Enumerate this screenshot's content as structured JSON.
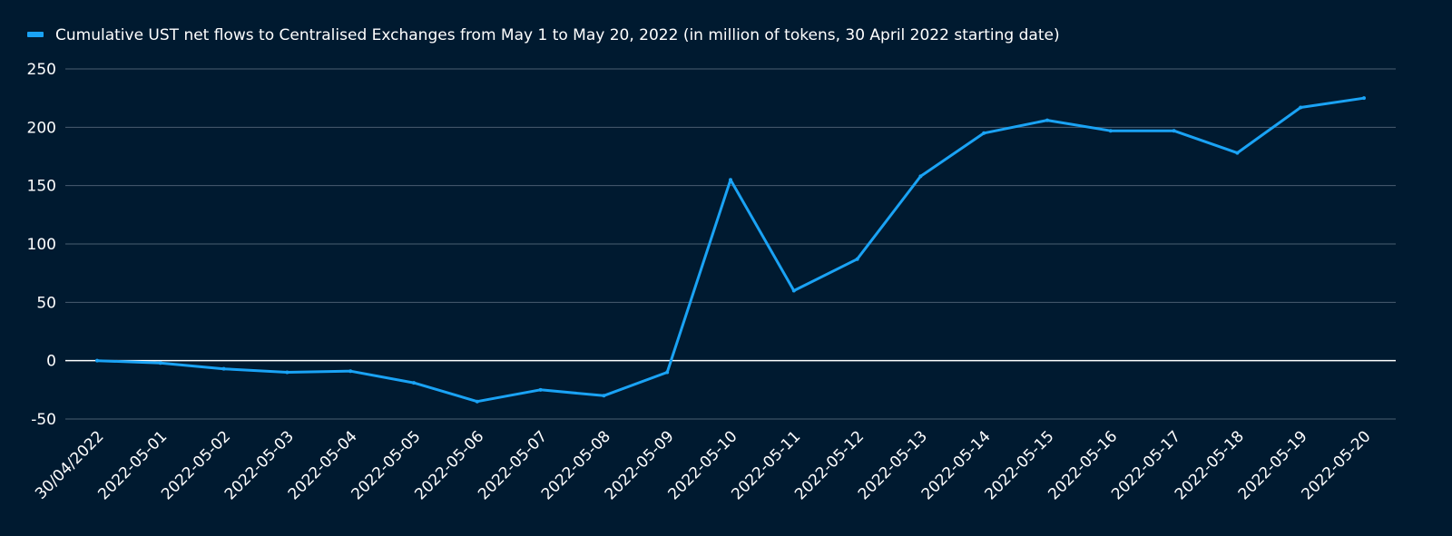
{
  "chart_data": {
    "type": "line",
    "title": "",
    "xlabel": "",
    "ylabel": "",
    "legend_position": "top-left",
    "grid": true,
    "ylim": [
      -50,
      250
    ],
    "yticks": [
      -50,
      0,
      50,
      100,
      150,
      200,
      250
    ],
    "categories": [
      "30/04/2022",
      "2022-05-01",
      "2022-05-02",
      "2022-05-03",
      "2022-05-04",
      "2022-05-05",
      "2022-05-06",
      "2022-05-07",
      "2022-05-08",
      "2022-05-09",
      "2022-05-10",
      "2022-05-11",
      "2022-05-12",
      "2022-05-13",
      "2022-05-14",
      "2022-05-15",
      "2022-05-16",
      "2022-05-17",
      "2022-05-18",
      "2022-05-19",
      "2022-05-20"
    ],
    "series": [
      {
        "name": "Cumulative UST net flows to Centralised Exchanges from May 1 to May 20, 2022 (in million of tokens, 30 April 2022 starting date)",
        "color": "#1aa3f5",
        "values": [
          0,
          -2,
          -7,
          -10,
          -9,
          -19,
          -35,
          -25,
          -30,
          -10,
          155,
          60,
          87,
          158,
          195,
          206,
          197,
          197,
          178,
          217,
          225
        ]
      }
    ]
  },
  "colors": {
    "background": "#001a30",
    "grid": "#4a5d70",
    "zero_line": "#ffffff",
    "text": "#ffffff"
  }
}
